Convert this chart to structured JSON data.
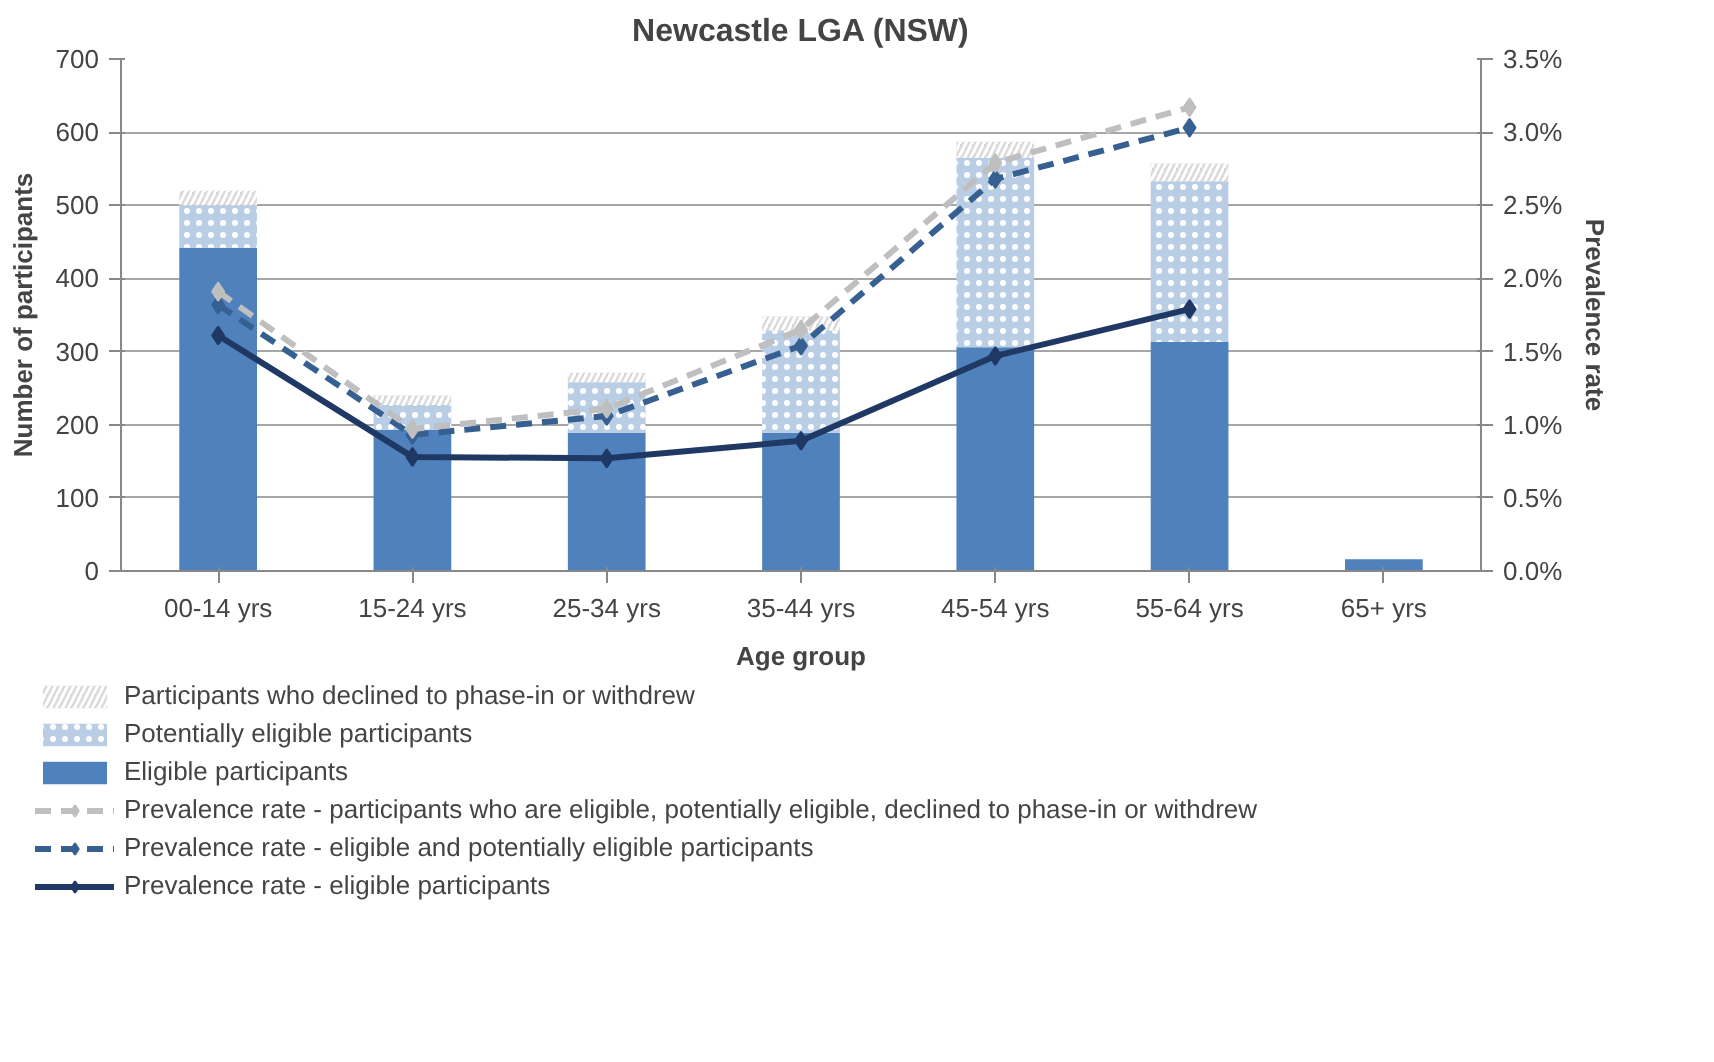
{
  "chart_data": {
    "type": "bar",
    "title": "Newcastle LGA (NSW)",
    "xlabel": "Age group",
    "ylabel": "Number of participants",
    "y2label": "Prevalence rate",
    "categories": [
      "00-14 yrs",
      "15-24 yrs",
      "25-34 yrs",
      "35-44 yrs",
      "45-54 yrs",
      "55-64 yrs",
      "65+ yrs"
    ],
    "stacked": true,
    "series": [
      {
        "name": "Eligible participants",
        "type": "bar",
        "color": "#4f81bd",
        "values": [
          442,
          193,
          189,
          189,
          306,
          313,
          16
        ]
      },
      {
        "name": "Potentially eligible participants",
        "type": "bar",
        "color": "#b9cde5",
        "values": [
          58,
          34,
          69,
          140,
          259,
          220,
          0
        ]
      },
      {
        "name": "Participants who declined to phase-in or withdrew",
        "type": "bar",
        "color": "#d9d9d9",
        "values": [
          20,
          13,
          13,
          19,
          22,
          24,
          0
        ]
      },
      {
        "name": "Prevalence rate - participants who are eligible, potentially eligible, declined to phase-in or withdrew",
        "type": "line",
        "axis": "y2",
        "color": "#bfbfbf",
        "line_style": "dashed",
        "marker": "diamond",
        "values": [
          1.91,
          0.97,
          1.11,
          1.65,
          2.79,
          3.17,
          null
        ]
      },
      {
        "name": "Prevalence rate - eligible and potentially eligible participants",
        "type": "line",
        "axis": "y2",
        "color": "#376092",
        "line_style": "dashed",
        "marker": "diamond",
        "values": [
          1.82,
          0.93,
          1.06,
          1.54,
          2.68,
          3.03,
          null
        ]
      },
      {
        "name": "Prevalence rate - eligible participants",
        "type": "line",
        "axis": "y2",
        "color": "#1f3864",
        "line_style": "solid",
        "marker": "diamond",
        "values": [
          1.61,
          0.78,
          0.77,
          0.89,
          1.47,
          1.79,
          null
        ]
      }
    ],
    "ylim": [
      0,
      700
    ],
    "yticks": [
      0,
      100,
      200,
      300,
      400,
      500,
      600,
      700
    ],
    "y2lim": [
      0,
      3.5
    ],
    "y2ticks": [
      {
        "value": 0,
        "label": "0.0%"
      },
      {
        "value": 0.5,
        "label": "0.5%"
      },
      {
        "value": 1.0,
        "label": "1.0%"
      },
      {
        "value": 1.5,
        "label": "1.5%"
      },
      {
        "value": 2.0,
        "label": "2.0%"
      },
      {
        "value": 2.5,
        "label": "2.5%"
      },
      {
        "value": 3.0,
        "label": "3.0%"
      },
      {
        "value": 3.5,
        "label": "3.5%"
      }
    ],
    "grid": "y",
    "legend": "bottom"
  }
}
